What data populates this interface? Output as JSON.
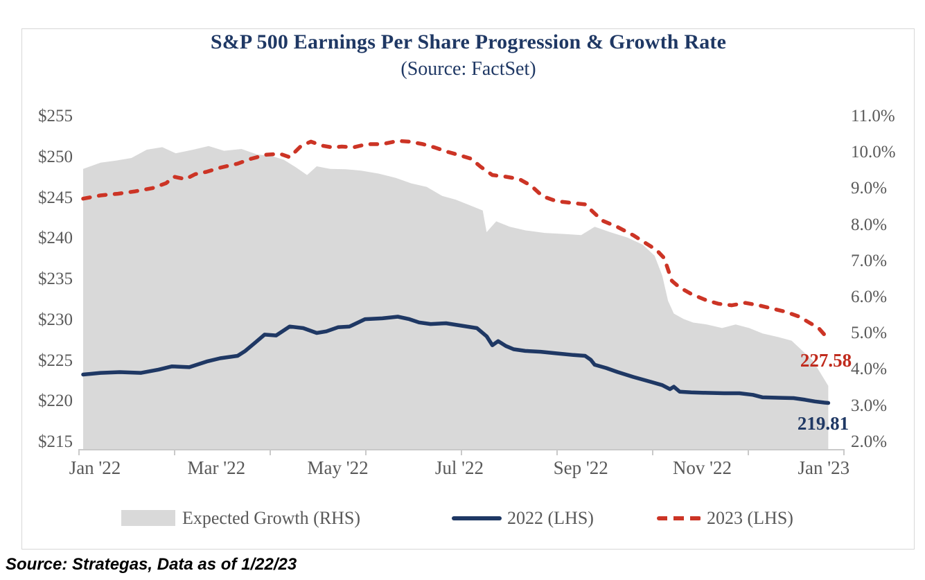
{
  "title": "S&P 500 Earnings Per Share Progression & Growth Rate",
  "subtitle": "(Source: FactSet)",
  "footer": "Source: Strategas, Data as of 1/22/23",
  "colors": {
    "title_navy": "#1f3864",
    "line_2022": "#1f3864",
    "line_2023": "#cc3425",
    "area_fill": "#d9d9d9",
    "axis_text": "#595959",
    "end_label_red": "#c02b1d",
    "end_label_navy": "#1f3864"
  },
  "legend": {
    "items": [
      {
        "label": "Expected Growth (RHS)",
        "swatch": "gray-area-swatch"
      },
      {
        "label": "2022 (LHS)",
        "swatch": "navy-line-swatch"
      },
      {
        "label": "2023 (LHS)",
        "swatch": "red-dash-swatch"
      }
    ]
  },
  "annotations": {
    "red_end": "227.58",
    "navy_end": "219.81"
  },
  "chart_data": {
    "type": "area",
    "combo": "gray area on right axis + two lines on left axis",
    "x_axis": {
      "start": "2022-01-01",
      "end": "2023-01-22",
      "labels": [
        "Jan '22",
        "Mar '22",
        "May '22",
        "Jul '22",
        "Sep '22",
        "Nov '22",
        "Jan '23"
      ]
    },
    "left_axis": {
      "labels": [
        "$255",
        "$250",
        "$245",
        "$240",
        "$235",
        "$230",
        "$225",
        "$220",
        "$215"
      ],
      "values": [
        255,
        250,
        245,
        240,
        235,
        230,
        225,
        220,
        215
      ],
      "min": 215,
      "max": 255
    },
    "right_axis": {
      "labels": [
        "11.0%",
        "10.0%",
        "9.0%",
        "8.0%",
        "7.0%",
        "6.0%",
        "5.0%",
        "4.0%",
        "3.0%",
        "2.0%"
      ],
      "values": [
        11,
        10,
        9,
        8,
        7,
        6,
        5,
        4,
        3,
        2
      ],
      "min": 2.0,
      "max": 11.0
    },
    "grid": false,
    "legend_position": "bottom",
    "series": [
      {
        "name": "Expected Growth (RHS)",
        "type": "area",
        "axis": "right",
        "color": "#d9d9d9",
        "points": [
          [
            "2022-01-01",
            9.55
          ],
          [
            "2022-01-10",
            9.72
          ],
          [
            "2022-01-18",
            9.78
          ],
          [
            "2022-01-26",
            9.85
          ],
          [
            "2022-02-03",
            10.08
          ],
          [
            "2022-02-11",
            10.15
          ],
          [
            "2022-02-18",
            9.98
          ],
          [
            "2022-02-27",
            10.08
          ],
          [
            "2022-03-07",
            10.18
          ],
          [
            "2022-03-15",
            10.05
          ],
          [
            "2022-03-24",
            10.1
          ],
          [
            "2022-04-01",
            9.95
          ],
          [
            "2022-04-09",
            9.9
          ],
          [
            "2022-04-15",
            9.8
          ],
          [
            "2022-04-21",
            9.6
          ],
          [
            "2022-04-27",
            9.38
          ],
          [
            "2022-05-02",
            9.62
          ],
          [
            "2022-05-09",
            9.55
          ],
          [
            "2022-05-17",
            9.54
          ],
          [
            "2022-05-25",
            9.5
          ],
          [
            "2022-06-03",
            9.42
          ],
          [
            "2022-06-12",
            9.3
          ],
          [
            "2022-06-20",
            9.15
          ],
          [
            "2022-06-28",
            9.05
          ],
          [
            "2022-07-06",
            8.8
          ],
          [
            "2022-07-13",
            8.7
          ],
          [
            "2022-07-20",
            8.55
          ],
          [
            "2022-07-27",
            8.4
          ],
          [
            "2022-07-29",
            7.8
          ],
          [
            "2022-08-03",
            8.1
          ],
          [
            "2022-08-10",
            7.95
          ],
          [
            "2022-08-18",
            7.85
          ],
          [
            "2022-08-28",
            7.78
          ],
          [
            "2022-09-07",
            7.75
          ],
          [
            "2022-09-16",
            7.72
          ],
          [
            "2022-09-23",
            7.95
          ],
          [
            "2022-10-01",
            7.8
          ],
          [
            "2022-10-10",
            7.65
          ],
          [
            "2022-10-18",
            7.45
          ],
          [
            "2022-10-24",
            7.15
          ],
          [
            "2022-10-28",
            6.6
          ],
          [
            "2022-10-31",
            5.9
          ],
          [
            "2022-11-03",
            5.55
          ],
          [
            "2022-11-08",
            5.4
          ],
          [
            "2022-11-13",
            5.3
          ],
          [
            "2022-11-20",
            5.25
          ],
          [
            "2022-11-28",
            5.15
          ],
          [
            "2022-12-05",
            5.25
          ],
          [
            "2022-12-12",
            5.15
          ],
          [
            "2022-12-19",
            5.0
          ],
          [
            "2022-12-27",
            4.9
          ],
          [
            "2023-01-03",
            4.8
          ],
          [
            "2023-01-09",
            4.5
          ],
          [
            "2023-01-14",
            4.25
          ],
          [
            "2023-01-18",
            3.9
          ],
          [
            "2023-01-22",
            3.55
          ]
        ]
      },
      {
        "name": "2022 (LHS)",
        "type": "line",
        "axis": "left",
        "color": "#1f3864",
        "dash": false,
        "end_value": 219.81,
        "points": [
          [
            "2022-01-01",
            223.3
          ],
          [
            "2022-01-10",
            223.5
          ],
          [
            "2022-01-20",
            223.6
          ],
          [
            "2022-01-31",
            223.5
          ],
          [
            "2022-02-09",
            223.9
          ],
          [
            "2022-02-16",
            224.3
          ],
          [
            "2022-02-25",
            224.2
          ],
          [
            "2022-03-06",
            224.9
          ],
          [
            "2022-03-13",
            225.3
          ],
          [
            "2022-03-22",
            225.6
          ],
          [
            "2022-03-26",
            226.2
          ],
          [
            "2022-03-31",
            227.2
          ],
          [
            "2022-04-05",
            228.2
          ],
          [
            "2022-04-11",
            228.1
          ],
          [
            "2022-04-18",
            229.2
          ],
          [
            "2022-04-25",
            229.0
          ],
          [
            "2022-05-02",
            228.4
          ],
          [
            "2022-05-07",
            228.6
          ],
          [
            "2022-05-13",
            229.1
          ],
          [
            "2022-05-19",
            229.2
          ],
          [
            "2022-05-27",
            230.1
          ],
          [
            "2022-06-05",
            230.2
          ],
          [
            "2022-06-13",
            230.4
          ],
          [
            "2022-06-19",
            230.1
          ],
          [
            "2022-06-24",
            229.7
          ],
          [
            "2022-06-30",
            229.5
          ],
          [
            "2022-07-08",
            229.6
          ],
          [
            "2022-07-16",
            229.3
          ],
          [
            "2022-07-24",
            229.0
          ],
          [
            "2022-07-29",
            228.0
          ],
          [
            "2022-08-01",
            226.9
          ],
          [
            "2022-08-04",
            227.4
          ],
          [
            "2022-08-08",
            226.8
          ],
          [
            "2022-08-12",
            226.4
          ],
          [
            "2022-08-18",
            226.2
          ],
          [
            "2022-08-26",
            226.1
          ],
          [
            "2022-09-03",
            225.9
          ],
          [
            "2022-09-12",
            225.7
          ],
          [
            "2022-09-18",
            225.6
          ],
          [
            "2022-09-21",
            225.1
          ],
          [
            "2022-09-23",
            224.5
          ],
          [
            "2022-09-29",
            224.1
          ],
          [
            "2022-10-05",
            223.6
          ],
          [
            "2022-10-13",
            223.0
          ],
          [
            "2022-10-22",
            222.4
          ],
          [
            "2022-10-28",
            222.0
          ],
          [
            "2022-11-01",
            221.5
          ],
          [
            "2022-11-03",
            221.8
          ],
          [
            "2022-11-06",
            221.2
          ],
          [
            "2022-11-12",
            221.1
          ],
          [
            "2022-11-20",
            221.05
          ],
          [
            "2022-11-29",
            221.0
          ],
          [
            "2022-12-07",
            221.0
          ],
          [
            "2022-12-14",
            220.8
          ],
          [
            "2022-12-19",
            220.5
          ],
          [
            "2022-12-27",
            220.45
          ],
          [
            "2023-01-04",
            220.4
          ],
          [
            "2023-01-10",
            220.2
          ],
          [
            "2023-01-15",
            220.0
          ],
          [
            "2023-01-20",
            219.85
          ],
          [
            "2023-01-22",
            219.81
          ]
        ]
      },
      {
        "name": "2023 (LHS)",
        "type": "line",
        "axis": "left",
        "color": "#cc3425",
        "dash": true,
        "end_value": 227.58,
        "points": [
          [
            "2022-01-01",
            244.9
          ],
          [
            "2022-01-10",
            245.3
          ],
          [
            "2022-01-19",
            245.5
          ],
          [
            "2022-01-28",
            245.8
          ],
          [
            "2022-02-06",
            246.2
          ],
          [
            "2022-02-13",
            246.8
          ],
          [
            "2022-02-17",
            247.6
          ],
          [
            "2022-02-23",
            247.3
          ],
          [
            "2022-02-28",
            247.9
          ],
          [
            "2022-03-06",
            248.2
          ],
          [
            "2022-03-13",
            248.7
          ],
          [
            "2022-03-22",
            249.2
          ],
          [
            "2022-03-29",
            249.8
          ],
          [
            "2022-04-06",
            250.3
          ],
          [
            "2022-04-13",
            250.4
          ],
          [
            "2022-04-18",
            250.0
          ],
          [
            "2022-04-24",
            251.4
          ],
          [
            "2022-04-29",
            251.9
          ],
          [
            "2022-05-05",
            251.4
          ],
          [
            "2022-05-10",
            251.2
          ],
          [
            "2022-05-15",
            251.3
          ],
          [
            "2022-05-21",
            251.2
          ],
          [
            "2022-05-28",
            251.6
          ],
          [
            "2022-06-05",
            251.6
          ],
          [
            "2022-06-13",
            252.0
          ],
          [
            "2022-06-19",
            251.9
          ],
          [
            "2022-06-26",
            251.6
          ],
          [
            "2022-07-02",
            251.2
          ],
          [
            "2022-07-08",
            250.7
          ],
          [
            "2022-07-14",
            250.3
          ],
          [
            "2022-07-21",
            249.8
          ],
          [
            "2022-07-26",
            248.8
          ],
          [
            "2022-08-01",
            247.8
          ],
          [
            "2022-08-08",
            247.6
          ],
          [
            "2022-08-15",
            247.3
          ],
          [
            "2022-08-21",
            246.5
          ],
          [
            "2022-08-27",
            245.2
          ],
          [
            "2022-09-03",
            244.6
          ],
          [
            "2022-09-10",
            244.4
          ],
          [
            "2022-09-18",
            244.2
          ],
          [
            "2022-09-22",
            243.3
          ],
          [
            "2022-09-27",
            242.2
          ],
          [
            "2022-10-05",
            241.4
          ],
          [
            "2022-10-13",
            240.4
          ],
          [
            "2022-10-19",
            239.5
          ],
          [
            "2022-10-25",
            238.6
          ],
          [
            "2022-10-29",
            237.6
          ],
          [
            "2022-11-02",
            234.8
          ],
          [
            "2022-11-06",
            234.0
          ],
          [
            "2022-11-12",
            233.2
          ],
          [
            "2022-11-19",
            232.5
          ],
          [
            "2022-11-26",
            232.0
          ],
          [
            "2022-12-03",
            231.8
          ],
          [
            "2022-12-10",
            232.1
          ],
          [
            "2022-12-17",
            231.8
          ],
          [
            "2022-12-24",
            231.4
          ],
          [
            "2022-12-31",
            231.0
          ],
          [
            "2023-01-07",
            230.4
          ],
          [
            "2023-01-12",
            229.7
          ],
          [
            "2023-01-17",
            229.0
          ],
          [
            "2023-01-20",
            228.2
          ],
          [
            "2023-01-22",
            227.58
          ]
        ]
      }
    ]
  }
}
